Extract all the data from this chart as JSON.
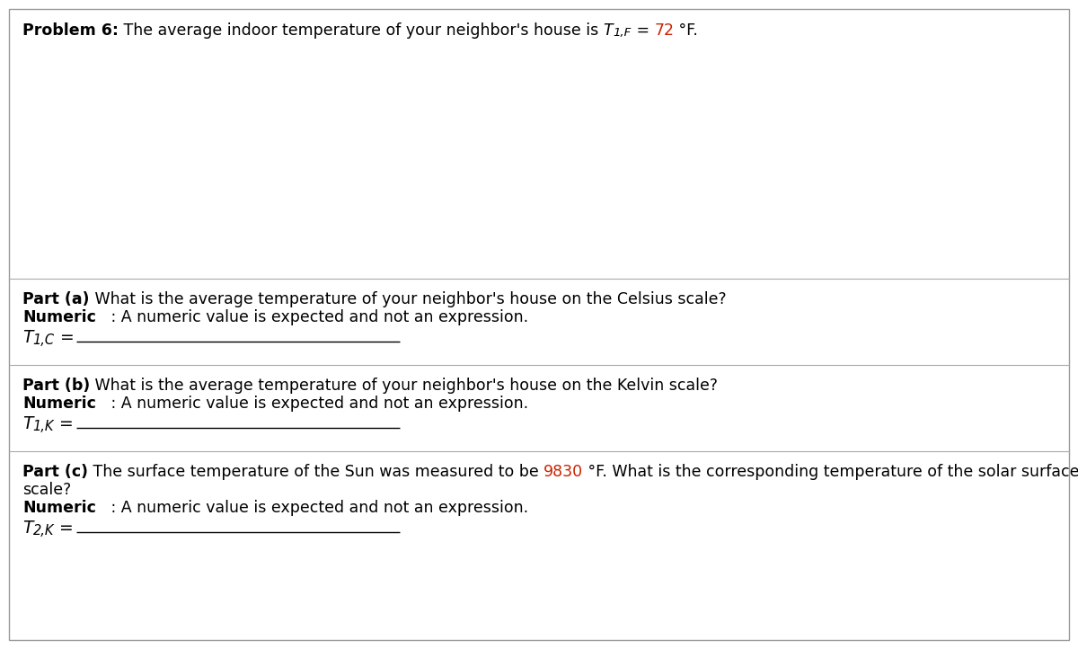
{
  "bg_color": "#ffffff",
  "border_color": "#999999",
  "text_color": "#000000",
  "highlight_color": "#cc2200",
  "line_color": "#000000",
  "divider_color": "#aaaaaa",
  "font_size": 12.5,
  "font_size_title": 12.5,
  "problem_bold": "Problem 6:",
  "problem_normal": " The average indoor temperature of your neighbor's house is ",
  "problem_T": "T",
  "problem_sub": "1,F",
  "problem_eq": " = ",
  "problem_val": "72",
  "problem_unit": " °F.",
  "part_a_bold": "Part (a)",
  "part_a_text": " What is the average temperature of your neighbor's house on the Celsius scale?",
  "part_a_num_bold": "Numeric",
  "part_a_num_text": "   : A numeric value is expected and not an expression.",
  "part_a_T": "T",
  "part_a_sub": "1,C",
  "part_a_eq": " =",
  "part_b_bold": "Part (b)",
  "part_b_text": " What is the average temperature of your neighbor's house on the Kelvin scale?",
  "part_b_num_bold": "Numeric",
  "part_b_num_text": "   : A numeric value is expected and not an expression.",
  "part_b_T": "T",
  "part_b_sub": "1,K",
  "part_b_eq": " =",
  "part_c_bold": "Part (c)",
  "part_c_before": " The surface temperature of the Sun was measured to be ",
  "part_c_val": "9830",
  "part_c_after": " °F. What is the corresponding temperature of the solar surface on the Kelvin",
  "part_c_line2": "scale?",
  "part_c_num_bold": "Numeric",
  "part_c_num_text": "   : A numeric value is expected and not an expression.",
  "part_c_T": "T",
  "part_c_sub": "2,K",
  "part_c_eq": " ="
}
